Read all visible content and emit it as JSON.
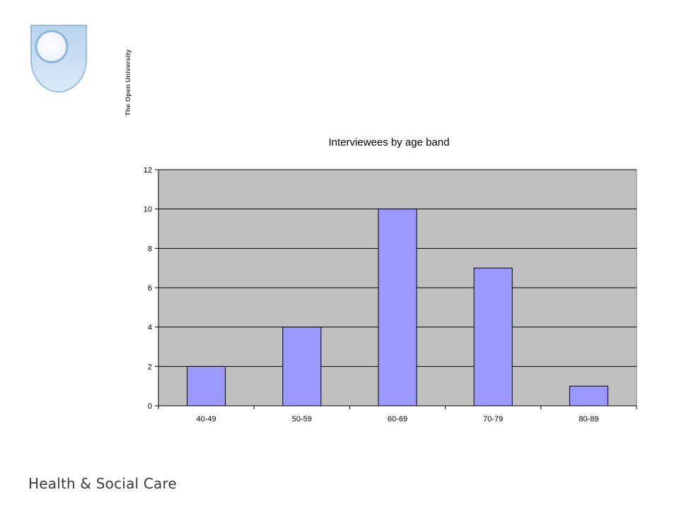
{
  "logo": {
    "text": "The Open University"
  },
  "footer": {
    "text": "Health & Social Care"
  },
  "chart_data": {
    "type": "bar",
    "title": "Interviewees by age band",
    "categories": [
      "40-49",
      "50-59",
      "60-69",
      "70-79",
      "80-89"
    ],
    "values": [
      2,
      4,
      10,
      7,
      1
    ],
    "ylim": [
      0,
      12
    ],
    "yticks": [
      0,
      2,
      4,
      6,
      8,
      10,
      12
    ],
    "xlabel": "",
    "ylabel": "",
    "grid": true,
    "legend": "none",
    "colors": {
      "bar": "#9999ff",
      "plot_bg": "#c0c0c0",
      "grid": "#000000"
    }
  }
}
